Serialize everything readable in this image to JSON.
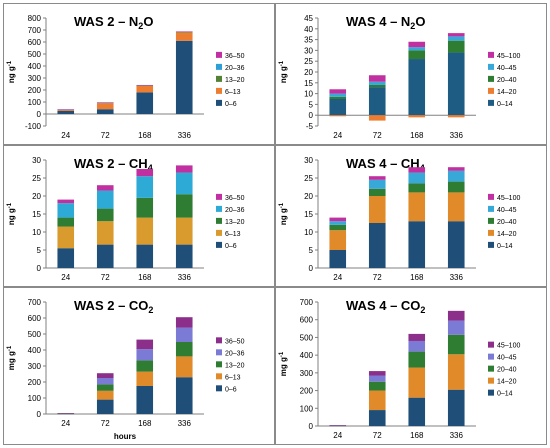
{
  "figure": {
    "xlabel_bottom": "hours"
  },
  "chart_data": [
    {
      "type": "bar",
      "stacked": true,
      "title_main": "WAS 2 – N",
      "title_sub": "2",
      "title_tail": "O",
      "ylabel": "ng g",
      "ylabel_sup": "-1",
      "xlabel": "",
      "categories": [
        "24",
        "72",
        "168",
        "336"
      ],
      "ylim": [
        -100,
        800
      ],
      "yticks": [
        "-100",
        "0",
        "100",
        "200",
        "300",
        "400",
        "500",
        "600",
        "700",
        "800"
      ],
      "ytick_values": [
        -100,
        0,
        100,
        200,
        300,
        400,
        500,
        600,
        700,
        800
      ],
      "series": [
        {
          "name": "0–6",
          "color": "#1f4e79",
          "values": [
            25,
            40,
            180,
            610
          ]
        },
        {
          "name": "6–13",
          "color": "#ed7d31",
          "values": [
            8,
            50,
            55,
            70
          ]
        },
        {
          "name": "13–20",
          "color": "#548235",
          "values": [
            4,
            5,
            5,
            5
          ]
        },
        {
          "name": "20–36",
          "color": "#2e9fd6",
          "values": [
            1,
            1,
            1,
            2
          ]
        },
        {
          "name": "36–50",
          "color": "#c030a0",
          "values": [
            1,
            1,
            1,
            1
          ]
        }
      ]
    },
    {
      "type": "bar",
      "stacked": true,
      "title_main": "WAS 4 – N",
      "title_sub": "2",
      "title_tail": "O",
      "ylabel": "ng g",
      "ylabel_sup": "-1",
      "xlabel": "",
      "categories": [
        "24",
        "72",
        "168",
        "336"
      ],
      "ylim": [
        -5,
        45
      ],
      "yticks": [
        "-5",
        "0",
        "5",
        "10",
        "15",
        "20",
        "25",
        "30",
        "35",
        "40",
        "45"
      ],
      "ytick_values": [
        -5,
        0,
        5,
        10,
        15,
        20,
        25,
        30,
        35,
        40,
        45
      ],
      "series": [
        {
          "name": "0–14",
          "color": "#1f5c84",
          "values": [
            7.5,
            13,
            26,
            29
          ]
        },
        {
          "name": "14–20",
          "color": "#ed7d31",
          "values": [
            -0.5,
            -2.5,
            -1,
            -1
          ]
        },
        {
          "name": "20–40",
          "color": "#2e7d32",
          "values": [
            1,
            1,
            4,
            5.5
          ]
        },
        {
          "name": "40–45",
          "color": "#38a8d8",
          "values": [
            1.5,
            1.5,
            1.5,
            2
          ]
        },
        {
          "name": "45–100",
          "color": "#c030a0",
          "values": [
            2,
            3,
            2.5,
            1.5
          ]
        }
      ]
    },
    {
      "type": "bar",
      "stacked": true,
      "title_main": "WAS 2 – CH",
      "title_sub": "4",
      "title_tail": "",
      "ylabel": "ng g",
      "ylabel_sup": "-1",
      "xlabel": "",
      "categories": [
        "24",
        "72",
        "168",
        "336"
      ],
      "ylim": [
        0,
        30
      ],
      "yticks": [
        "0",
        "5",
        "10",
        "15",
        "20",
        "25",
        "30"
      ],
      "ytick_values": [
        0,
        5,
        10,
        15,
        20,
        25,
        30
      ],
      "series": [
        {
          "name": "0–6",
          "color": "#1f4e79",
          "values": [
            5.5,
            6.5,
            6.5,
            6.5
          ]
        },
        {
          "name": "6–13",
          "color": "#d99a2e",
          "values": [
            6,
            6.5,
            7.5,
            7.5
          ]
        },
        {
          "name": "13–20",
          "color": "#2e7d32",
          "values": [
            2.5,
            3.5,
            5.5,
            6.5
          ]
        },
        {
          "name": "20–36",
          "color": "#2eaad6",
          "values": [
            4,
            5,
            6,
            6
          ]
        },
        {
          "name": "36–50",
          "color": "#c030a0",
          "values": [
            1,
            1.5,
            2,
            2
          ]
        }
      ]
    },
    {
      "type": "bar",
      "stacked": true,
      "title_main": "WAS 4 – CH",
      "title_sub": "4",
      "title_tail": "",
      "ylabel": "ng g",
      "ylabel_sup": "-1",
      "xlabel": "",
      "categories": [
        "24",
        "72",
        "168",
        "336"
      ],
      "ylim": [
        0,
        30
      ],
      "yticks": [
        "0",
        "5",
        "10",
        "15",
        "20",
        "25",
        "30"
      ],
      "ytick_values": [
        0,
        5,
        10,
        15,
        20,
        25,
        30
      ],
      "series": [
        {
          "name": "0–14",
          "color": "#1f4e79",
          "values": [
            5,
            12.5,
            13,
            13
          ]
        },
        {
          "name": "14–20",
          "color": "#e08a2a",
          "values": [
            5.5,
            7.5,
            8,
            8
          ]
        },
        {
          "name": "20–40",
          "color": "#2e7d32",
          "values": [
            1.5,
            2,
            2.5,
            3
          ]
        },
        {
          "name": "40–45",
          "color": "#38a8d8",
          "values": [
            1,
            2.5,
            3,
            3
          ]
        },
        {
          "name": "45–100",
          "color": "#c030a0",
          "values": [
            1,
            1,
            1.5,
            1
          ]
        }
      ]
    },
    {
      "type": "bar",
      "stacked": true,
      "title_main": "WAS 2 – CO",
      "title_sub": "2",
      "title_tail": "",
      "ylabel": "mg g",
      "ylabel_sup": "-1",
      "xlabel": "hours",
      "categories": [
        "24",
        "72",
        "168",
        "336"
      ],
      "ylim": [
        0,
        700
      ],
      "yticks": [
        "0",
        "100",
        "200",
        "300",
        "400",
        "500",
        "600",
        "700"
      ],
      "ytick_values": [
        0,
        100,
        200,
        300,
        400,
        500,
        600,
        700
      ],
      "series": [
        {
          "name": "0–6",
          "color": "#1f4e79",
          "values": [
            2,
            90,
            175,
            230
          ]
        },
        {
          "name": "6–13",
          "color": "#e08a2a",
          "values": [
            1,
            55,
            90,
            130
          ]
        },
        {
          "name": "13–20",
          "color": "#2e7d32",
          "values": [
            1,
            40,
            70,
            90
          ]
        },
        {
          "name": "20–36",
          "color": "#7b7bd6",
          "values": [
            1,
            40,
            70,
            90
          ]
        },
        {
          "name": "36–50",
          "color": "#8b2f8b",
          "values": [
            1,
            30,
            60,
            65
          ]
        }
      ]
    },
    {
      "type": "bar",
      "stacked": true,
      "title_main": "WAS 4 – CO",
      "title_sub": "2",
      "title_tail": "",
      "ylabel": "mg g",
      "ylabel_sup": "-1",
      "xlabel": "",
      "categories": [
        "24",
        "72",
        "168",
        "336"
      ],
      "ylim": [
        0,
        700
      ],
      "yticks": [
        "0",
        "100",
        "200",
        "300",
        "400",
        "500",
        "600",
        "700"
      ],
      "ytick_values": [
        0,
        100,
        200,
        300,
        400,
        500,
        600,
        700
      ],
      "series": [
        {
          "name": "0–14",
          "color": "#1f4e79",
          "values": [
            1,
            90,
            160,
            205
          ]
        },
        {
          "name": "14–20",
          "color": "#e08a2a",
          "values": [
            1,
            110,
            170,
            200
          ]
        },
        {
          "name": "20–40",
          "color": "#2e7d32",
          "values": [
            1,
            50,
            90,
            110
          ]
        },
        {
          "name": "40–45",
          "color": "#7b7bd6",
          "values": [
            1,
            35,
            60,
            80
          ]
        },
        {
          "name": "45–100",
          "color": "#8b2f8b",
          "values": [
            1,
            25,
            40,
            55
          ]
        }
      ]
    }
  ]
}
